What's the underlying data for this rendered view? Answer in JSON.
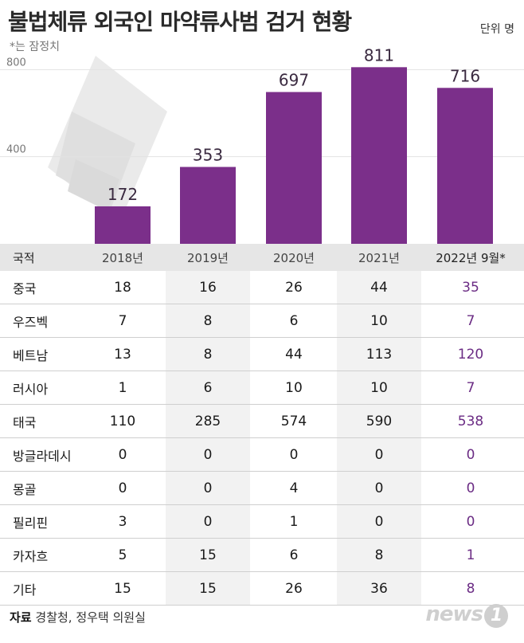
{
  "title": "불법체류 외국인 마약류사범 검거 현황",
  "unit": "단위 명",
  "note": "*는 잠정치",
  "source_label": "자료",
  "source_text": "경찰청, 정우택 의원실",
  "logo": "news",
  "logo_num": "1",
  "colors": {
    "bar": "#7b2f8a",
    "bar_top": "#8c3a9b",
    "label": "#3a2a40",
    "accent": "#6b2c84"
  },
  "chart_data": {
    "type": "bar",
    "categories": [
      "2018년",
      "2019년",
      "2020년",
      "2021년",
      "2022년 9월*"
    ],
    "values": [
      172,
      353,
      697,
      811,
      716
    ],
    "yticks": [
      400,
      800
    ],
    "ylim": [
      0,
      900
    ],
    "title": "불법체류 외국인 마약류사범 검거 현황",
    "xlabel": "",
    "ylabel": "",
    "grid": true
  },
  "table": {
    "header_country": "국적",
    "years": [
      "2018년",
      "2019년",
      "2020년",
      "2021년",
      "2022년 9월*"
    ],
    "rows": [
      {
        "country": "중국",
        "values": [
          "18",
          "16",
          "26",
          "44",
          "35"
        ]
      },
      {
        "country": "우즈벡",
        "values": [
          "7",
          "8",
          "6",
          "10",
          "7"
        ]
      },
      {
        "country": "베트남",
        "values": [
          "13",
          "8",
          "44",
          "113",
          "120"
        ]
      },
      {
        "country": "러시아",
        "values": [
          "1",
          "6",
          "10",
          "10",
          "7"
        ]
      },
      {
        "country": "태국",
        "values": [
          "110",
          "285",
          "574",
          "590",
          "538"
        ]
      },
      {
        "country": "방글라데시",
        "values": [
          "0",
          "0",
          "0",
          "0",
          "0"
        ]
      },
      {
        "country": "몽골",
        "values": [
          "0",
          "0",
          "4",
          "0",
          "0"
        ]
      },
      {
        "country": "필리핀",
        "values": [
          "3",
          "0",
          "1",
          "0",
          "0"
        ]
      },
      {
        "country": "카자흐",
        "values": [
          "5",
          "15",
          "6",
          "8",
          "1"
        ]
      },
      {
        "country": "기타",
        "values": [
          "15",
          "15",
          "26",
          "36",
          "8"
        ]
      }
    ]
  }
}
